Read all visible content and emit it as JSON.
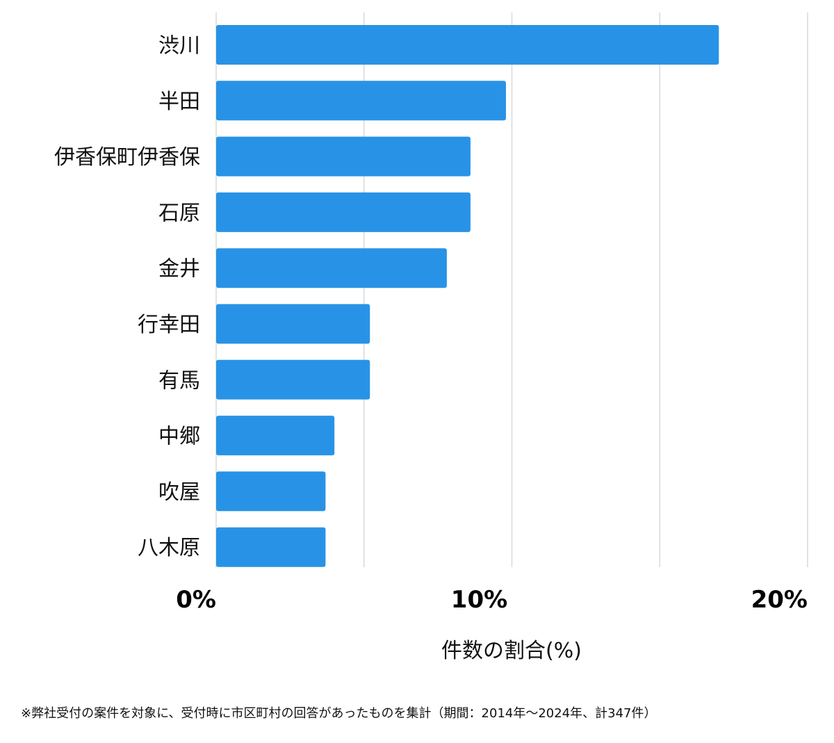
{
  "chart_data": {
    "type": "bar",
    "orientation": "horizontal",
    "categories": [
      "渋川",
      "半田",
      "伊香保町伊香保",
      "石原",
      "金井",
      "行幸田",
      "有馬",
      "中郷",
      "吹屋",
      "八木原"
    ],
    "values": [
      17.0,
      9.8,
      8.6,
      8.6,
      7.8,
      5.2,
      5.2,
      4.0,
      3.7,
      3.7
    ],
    "xlim": [
      0,
      20
    ],
    "xticks": [
      0,
      10,
      20
    ],
    "xtick_labels": [
      "0%",
      "10%",
      "20%"
    ],
    "xlabel": "件数の割合(%)",
    "grid": true,
    "bar_color": "#2893e6",
    "grid_color": "#d9d9d9"
  },
  "footnote": "※弊社受付の案件を対象に、受付時に市区町村の回答があったものを集計（期間：2014年～2024年、計347件）"
}
